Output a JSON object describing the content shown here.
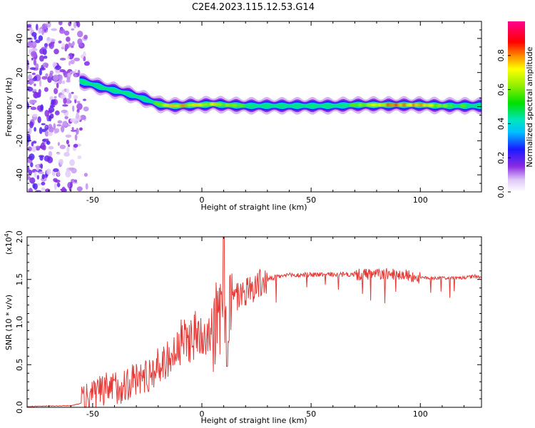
{
  "title": "C2E4.2023.115.12.53.G14",
  "chart_data": [
    {
      "type": "heatmap",
      "name": "spectrogram",
      "xlabel": "Height of straight line (km)",
      "ylabel": "Frequency (Hz)",
      "xlim": [
        -80,
        128
      ],
      "ylim": [
        -50,
        50
      ],
      "xticks": [
        -50,
        0,
        50,
        100
      ],
      "yticks": [
        -40,
        -20,
        0,
        20,
        40
      ],
      "colorscale": "rainbow (white to purple to blue to cyan to green to yellow to red to magenta)",
      "ridge": {
        "description": "Frequency of the dominant spectral peak vs height",
        "x": [
          -56,
          -50,
          -45,
          -40,
          -35,
          -30,
          -25,
          -20,
          -15,
          -10,
          -5,
          0,
          5,
          10,
          20,
          30,
          40,
          50,
          60,
          70,
          80,
          90,
          100,
          110,
          120,
          128
        ],
        "y": [
          15,
          13,
          11,
          9.5,
          8,
          6,
          4,
          1.5,
          0.5,
          0.5,
          1,
          1,
          1.5,
          1,
          0.5,
          0.5,
          0.5,
          0.5,
          0.5,
          1,
          1,
          1,
          1,
          0.5,
          0.5,
          0.5
        ],
        "peak_amplitude": [
          0.3,
          0.45,
          0.5,
          0.45,
          0.5,
          0.45,
          0.5,
          0.6,
          0.7,
          0.8,
          0.75,
          0.7,
          0.75,
          0.65,
          0.55,
          0.5,
          0.5,
          0.5,
          0.55,
          0.6,
          0.85,
          0.9,
          0.85,
          0.6,
          0.6,
          0.55
        ]
      },
      "noise_region": {
        "x_range": [
          -80,
          -55
        ],
        "y_range": [
          -50,
          50
        ]
      }
    },
    {
      "type": "colorbar",
      "label": "Normalized spectral amplitude",
      "range": [
        0,
        1
      ],
      "ticks": [
        "0.0",
        "0.2",
        "0.4",
        "0.6",
        "0.8"
      ]
    },
    {
      "type": "line",
      "name": "snr",
      "xlabel": "Height of straight line (km)",
      "ylabel": "SNR (10 * v/v)",
      "y_multiplier_label": "(x10",
      "y_multiplier_exp": "4",
      "y_multiplier_close": ")",
      "xlim": [
        -80,
        128
      ],
      "ylim": [
        0,
        2.0
      ],
      "xticks": [
        -50,
        0,
        50,
        100
      ],
      "yticks": [
        "0.0",
        "0.5",
        "1.0",
        "1.5",
        "2.0"
      ],
      "color": "#e53935",
      "envelope": {
        "x": [
          -80,
          -60,
          -55,
          -52,
          -50,
          -45,
          -40,
          -35,
          -30,
          -25,
          -20,
          -15,
          -10,
          -5,
          0,
          5,
          8,
          10,
          12,
          15,
          20,
          25,
          30,
          35,
          40,
          50,
          60,
          70,
          80,
          90,
          95,
          100,
          110,
          120,
          125,
          128
        ],
        "y": [
          0.01,
          0.02,
          0.05,
          0.12,
          0.15,
          0.2,
          0.25,
          0.3,
          0.35,
          0.4,
          0.5,
          0.6,
          0.75,
          0.85,
          0.9,
          1.0,
          1.05,
          1.15,
          1.2,
          1.3,
          1.38,
          1.45,
          1.5,
          1.54,
          1.55,
          1.56,
          1.56,
          1.56,
          1.57,
          1.57,
          1.55,
          1.52,
          1.52,
          1.52,
          1.54,
          1.52
        ]
      }
    }
  ]
}
